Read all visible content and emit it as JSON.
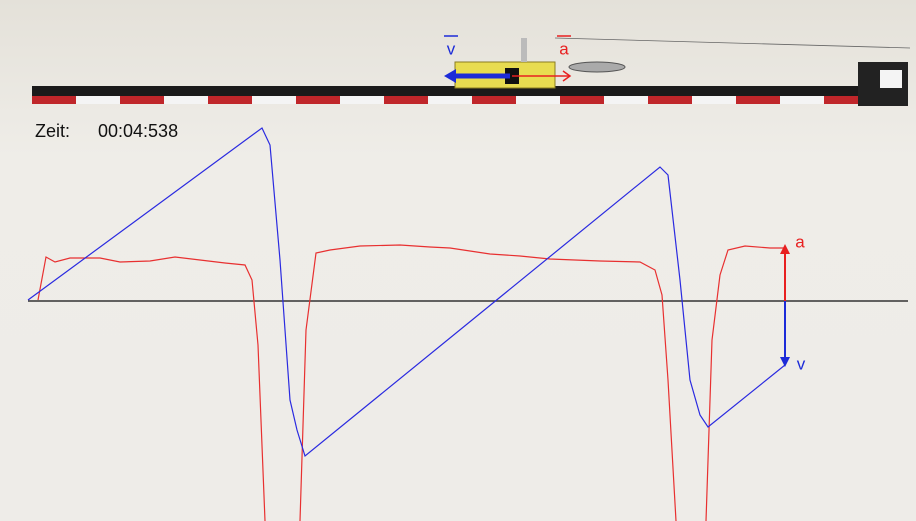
{
  "header": {
    "time_label": "Zeit:",
    "time": "00:04:538"
  },
  "cart": {
    "velocity_label": "v",
    "acceleration_label": "a"
  },
  "graph": {
    "acceleration_label": "a",
    "velocity_label": "v"
  }
}
